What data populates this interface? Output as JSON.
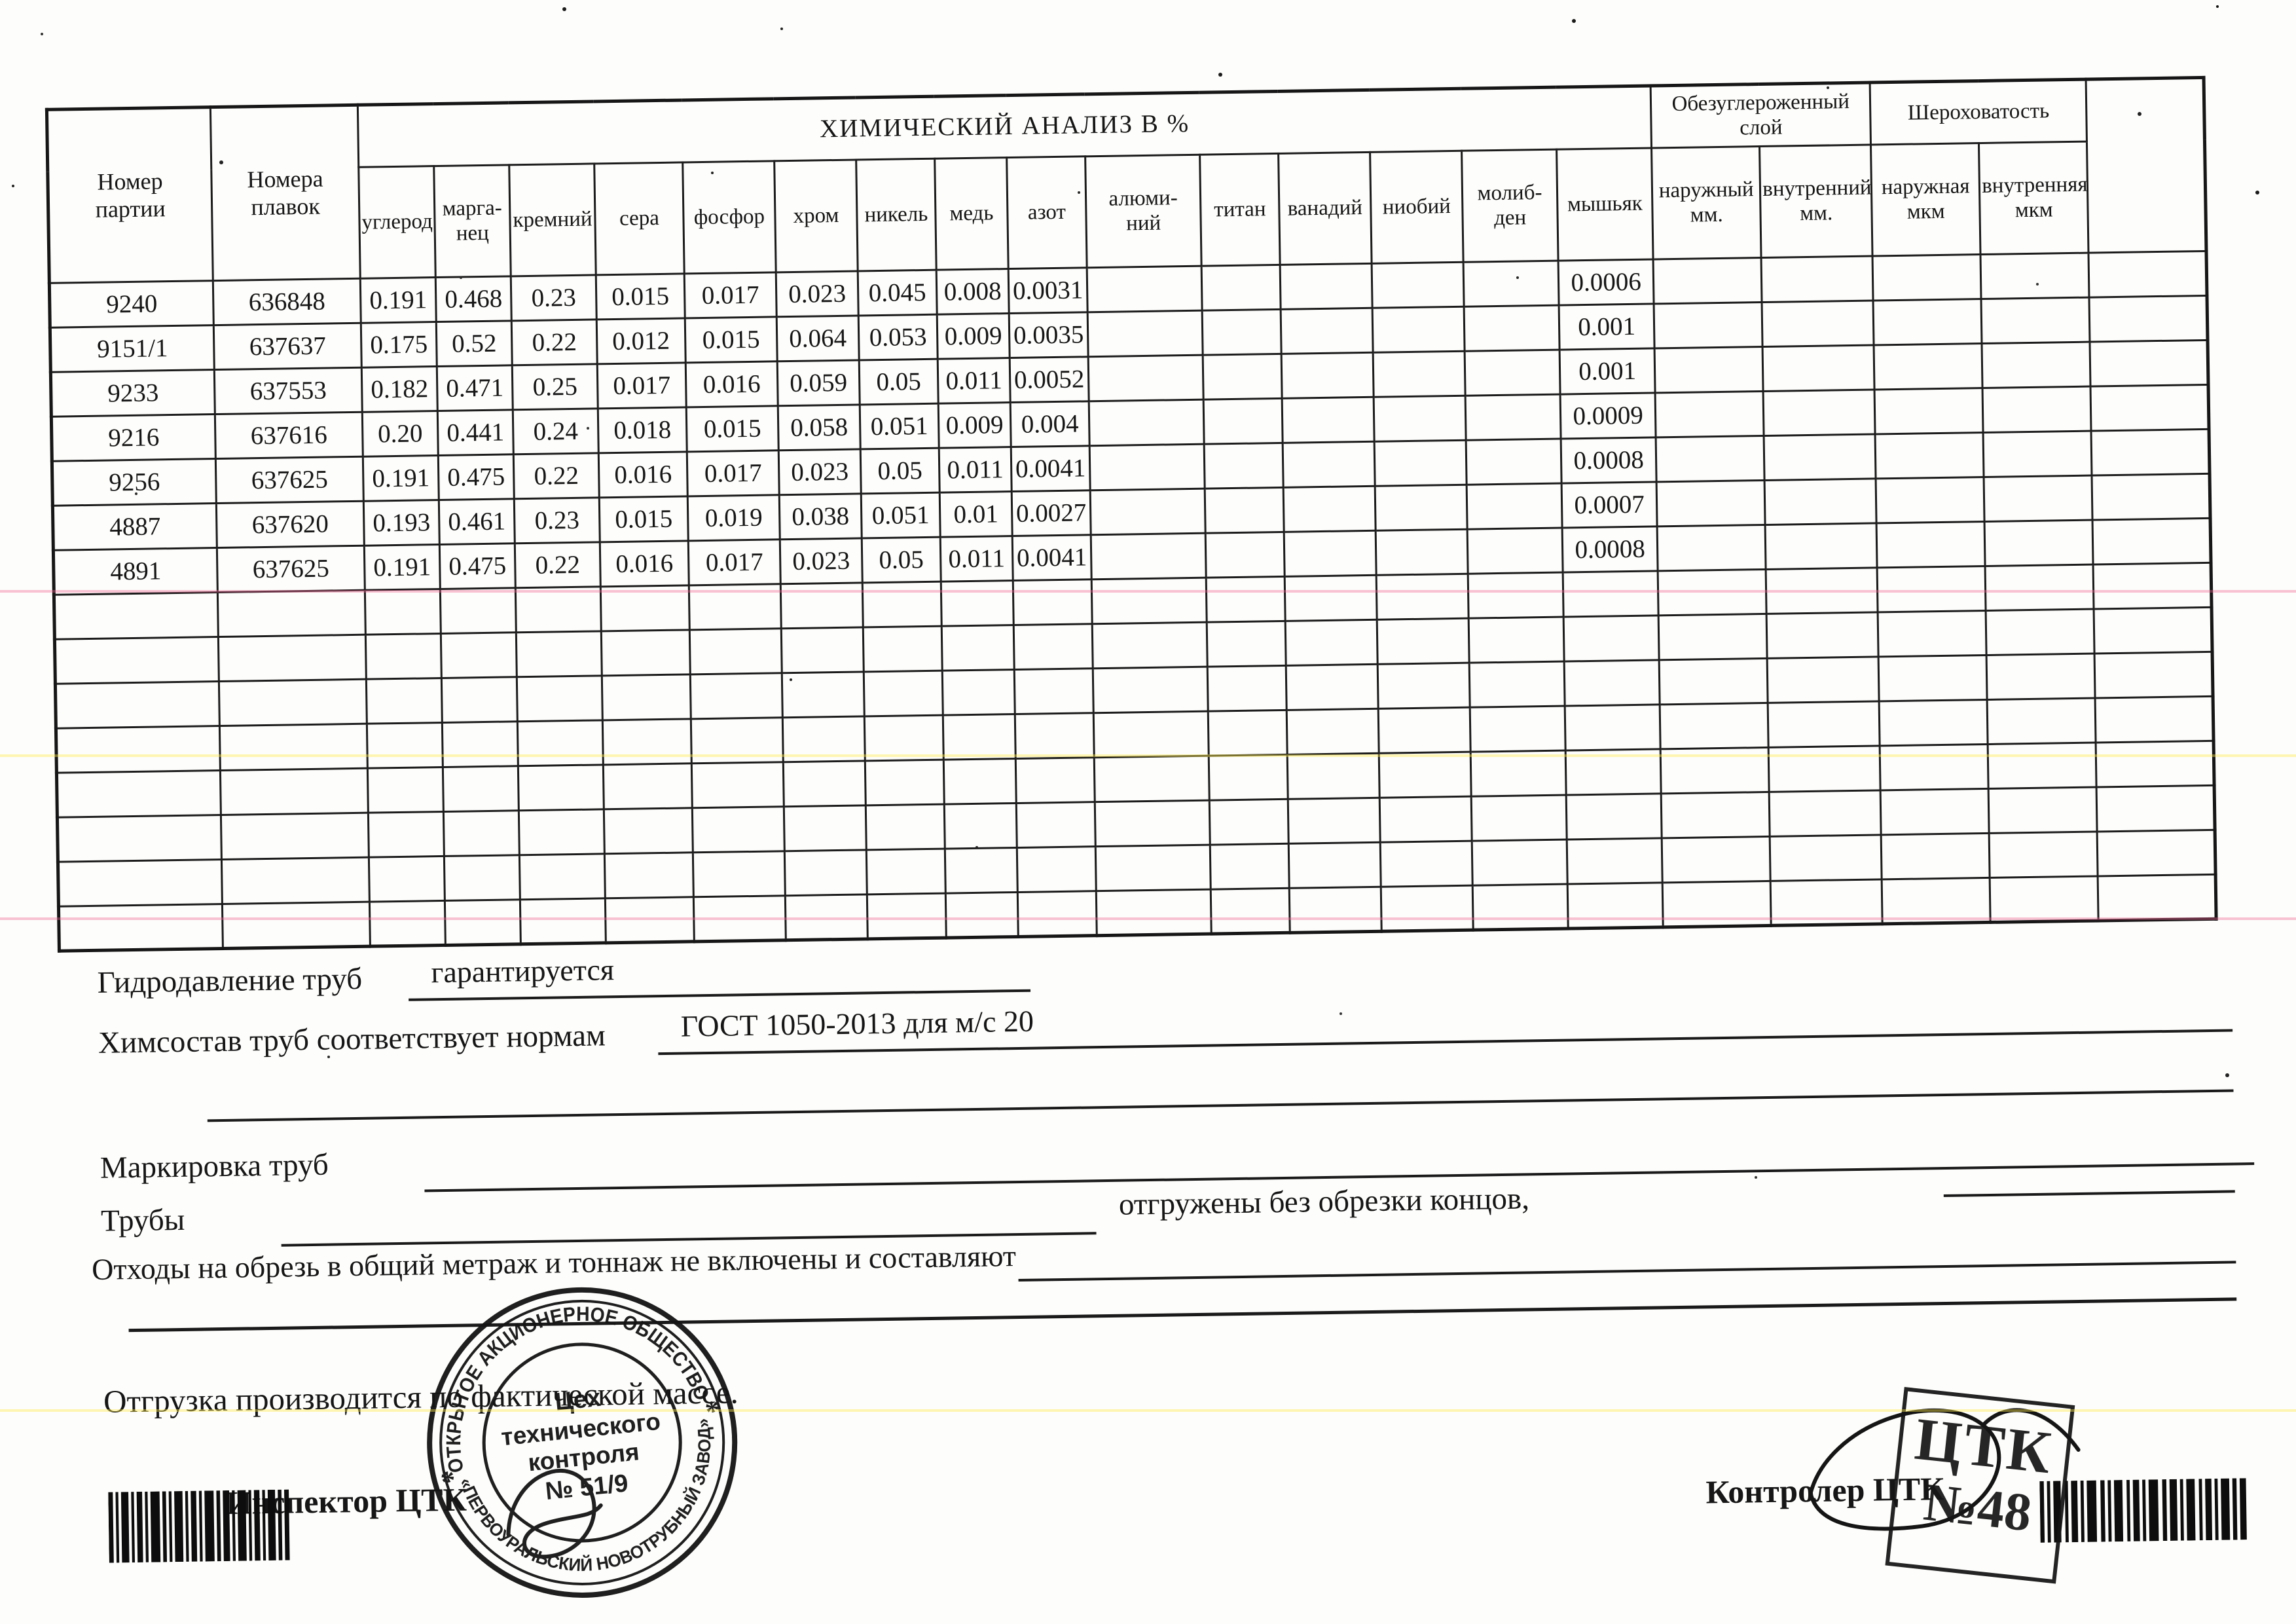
{
  "document": {
    "table": {
      "chemical_title": "ХИМИЧЕСКИЙ АНАЛИЗ В  %",
      "col_batch": "Номер\nпартии",
      "col_heats": "Номера\nплавок",
      "group_decarb": "Обезуглероженный\nслой",
      "group_rough": "Шероховатость",
      "sub_headers": [
        "углерод",
        "марга-\nнец",
        "кремний",
        "сера",
        "фосфор",
        "хром",
        "никель",
        "медь",
        "азот",
        "алюми-\nний",
        "титан",
        "ванадий",
        "ниобий",
        "молиб-\nден",
        "мышьяк",
        "наружный\nмм.",
        "внутренний\nмм.",
        "наружная\nмкм",
        "внутренняя\nмкм"
      ],
      "rows": [
        [
          "9240",
          "636848",
          "0.191",
          "0.468",
          "0.23",
          "0.015",
          "0.017",
          "0.023",
          "0.045",
          "0.008",
          "0.0031",
          "",
          "",
          "",
          "",
          "",
          "0.0006",
          "",
          "",
          "",
          "",
          ""
        ],
        [
          "9151/1",
          "637637",
          "0.175",
          "0.52",
          "0.22",
          "0.012",
          "0.015",
          "0.064",
          "0.053",
          "0.009",
          "0.0035",
          "",
          "",
          "",
          "",
          "",
          "0.001",
          "",
          "",
          "",
          "",
          ""
        ],
        [
          "9233",
          "637553",
          "0.182",
          "0.471",
          "0.25",
          "0.017",
          "0.016",
          "0.059",
          "0.05",
          "0.011",
          "0.0052",
          "",
          "",
          "",
          "",
          "",
          "0.001",
          "",
          "",
          "",
          "",
          ""
        ],
        [
          "9216",
          "637616",
          "0.20",
          "0.441",
          "0.24",
          "0.018",
          "0.015",
          "0.058",
          "0.051",
          "0.009",
          "0.004",
          "",
          "",
          "",
          "",
          "",
          "0.0009",
          "",
          "",
          "",
          "",
          ""
        ],
        [
          "9256",
          "637625",
          "0.191",
          "0.475",
          "0.22",
          "0.016",
          "0.017",
          "0.023",
          "0.05",
          "0.011",
          "0.0041",
          "",
          "",
          "",
          "",
          "",
          "0.0008",
          "",
          "",
          "",
          "",
          ""
        ],
        [
          "4887",
          "637620",
          "0.193",
          "0.461",
          "0.23",
          "0.015",
          "0.019",
          "0.038",
          "0.051",
          "0.01",
          "0.0027",
          "",
          "",
          "",
          "",
          "",
          "0.0007",
          "",
          "",
          "",
          "",
          ""
        ],
        [
          "4891",
          "637625",
          "0.191",
          "0.475",
          "0.22",
          "0.016",
          "0.017",
          "0.023",
          "0.05",
          "0.011",
          "0.0041",
          "",
          "",
          "",
          "",
          "",
          "0.0008",
          "",
          "",
          "",
          "",
          ""
        ]
      ],
      "empty_row_count": 8
    },
    "fields": {
      "hydro_label": "Гидродавление труб",
      "hydro_value": "гарантируется",
      "chem_label": "Химсостав труб соответствует нормам",
      "chem_value": "ГОСТ 1050-2013 для м/с 20",
      "marking_label": "Маркировка труб",
      "pipes_label": "Трубы",
      "pipes_note": "отгружены без обрезки концов,",
      "waste_label": "Отходы на обрезь в общий метраж и тоннаж не включены и составляют",
      "shipping_note": "Отгрузка производится по фактической массе.",
      "inspector_label": "Инспектор ЦТК",
      "controller_label": "Контролер ЦТК"
    },
    "round_stamp": {
      "ring_top": "ОТКРЫТОЕ АКЦИОНЕРНОЕ ОБЩЕСТВО",
      "ring_bottom": "«ПЕРВОУРАЛЬСКИЙ НОВОТРУБНЫЙ ЗАВОД»",
      "sep_left": "*",
      "sep_right": "*",
      "center_line1": "Цех",
      "center_line2": "технического",
      "center_line3": "контроля",
      "center_line4": "№ 51/9"
    },
    "square_stamp": {
      "line1": "ЦТК",
      "line2": "№48"
    },
    "colors": {
      "ink": "#161616",
      "paper": "#fdfdfb",
      "stamp_ink": "#141414"
    }
  }
}
